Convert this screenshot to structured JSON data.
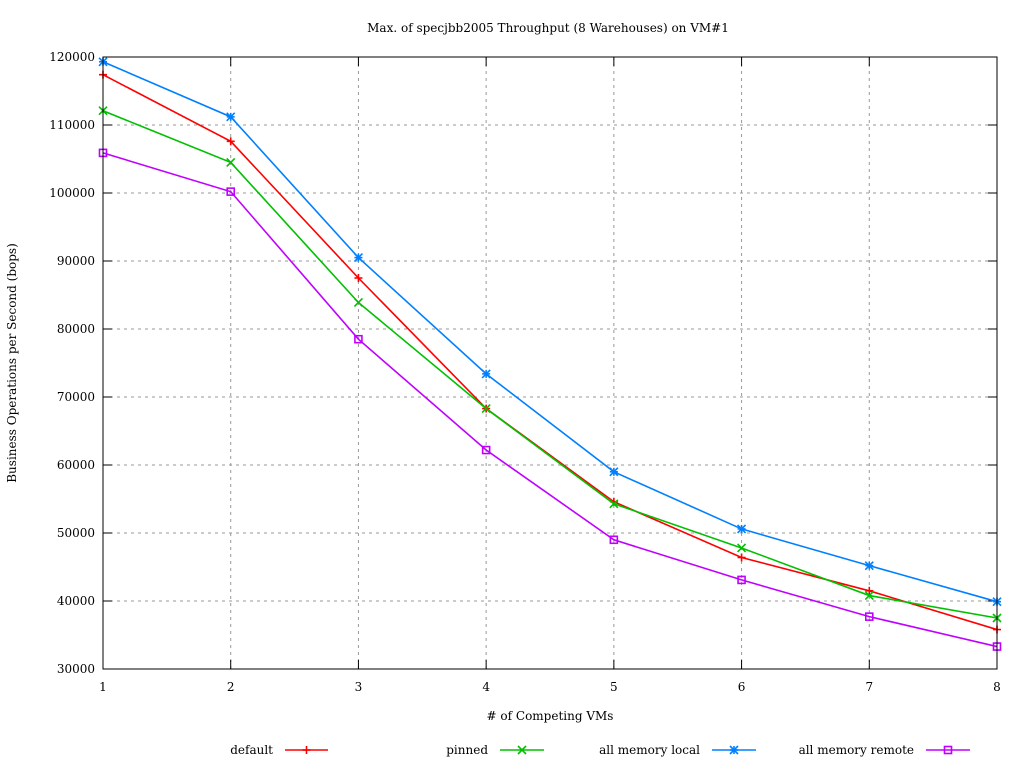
{
  "chart_data": {
    "type": "line",
    "title": "Max. of specjbb2005 Throughput (8 Warehouses) on VM#1",
    "xlabel": "# of Competing VMs",
    "ylabel": "Business Operations per Second (bops)",
    "xlim": [
      1,
      8
    ],
    "ylim": [
      30000,
      120000
    ],
    "xticks": [
      1,
      2,
      3,
      4,
      5,
      6,
      7,
      8
    ],
    "yticks": [
      30000,
      40000,
      50000,
      60000,
      70000,
      80000,
      90000,
      100000,
      110000,
      120000
    ],
    "grid": true,
    "legend_placement": "bottom",
    "x": [
      1,
      2,
      3,
      4,
      5,
      6,
      7,
      8
    ],
    "series": [
      {
        "name": "default",
        "color": "#ff0000",
        "marker": "plus",
        "values": [
          117400,
          107600,
          87500,
          68300,
          54600,
          46400,
          41500,
          35800
        ]
      },
      {
        "name": "pinned",
        "color": "#00c000",
        "marker": "cross",
        "values": [
          112100,
          104500,
          83900,
          68300,
          54300,
          47800,
          40800,
          37500
        ]
      },
      {
        "name": "all memory local",
        "color": "#0080ff",
        "marker": "star",
        "values": [
          119300,
          111200,
          90500,
          73400,
          59000,
          50600,
          45200,
          39900
        ]
      },
      {
        "name": "all memory remote",
        "color": "#c000ff",
        "marker": "square",
        "values": [
          105900,
          100200,
          78500,
          62200,
          49000,
          43100,
          37700,
          33300
        ]
      }
    ]
  }
}
